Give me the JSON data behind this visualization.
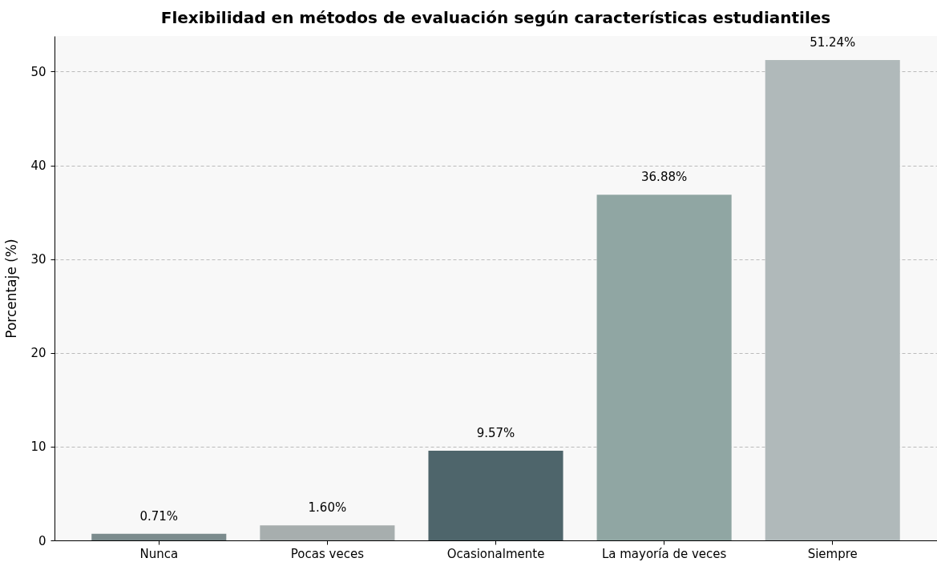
{
  "chart_data": {
    "type": "bar",
    "title": "Flexibilidad en métodos de evaluación según características estudiantiles",
    "ylabel": "Porcentaje (%)",
    "categories": [
      "Nunca",
      "Pocas veces",
      "Ocasionalmente",
      "La mayoría de veces",
      "Siempre"
    ],
    "values": [
      0.71,
      1.6,
      9.57,
      36.88,
      51.24
    ],
    "value_labels": [
      "0.71%",
      "1.60%",
      "9.57%",
      "36.88%",
      "51.24%"
    ],
    "colors": [
      "#7b8b8d",
      "#a7aeae",
      "#4e656b",
      "#90a6a3",
      "#b0b9ba"
    ],
    "ylim": [
      0,
      53.8
    ],
    "yticks": [
      0,
      10,
      20,
      30,
      40,
      50
    ],
    "grid": "y"
  }
}
